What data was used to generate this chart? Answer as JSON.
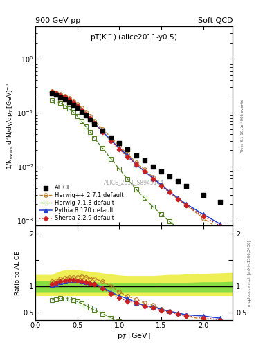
{
  "title_left": "900 GeV pp",
  "title_right": "Soft QCD",
  "plot_label": "pT(K$^-$) (alice2011-y0.5)",
  "watermark": "ALICE_2011_S8945144",
  "right_label_top": "Rivet 3.1.10, ≥ 400k events",
  "right_label_bot": "mcplots.cern.ch [arXiv:1306.3436]",
  "ylabel_main": "1/N$_{event}$ d$^{2}$N/dy/dp$_{T}$ [GeV]$^{-1}$",
  "ylabel_ratio": "Ratio to ALICE",
  "xlabel": "p$_{T}$ [GeV]",
  "alice_pt": [
    0.2,
    0.25,
    0.3,
    0.35,
    0.4,
    0.45,
    0.5,
    0.55,
    0.6,
    0.65,
    0.7,
    0.8,
    0.9,
    1.0,
    1.1,
    1.2,
    1.3,
    1.4,
    1.5,
    1.6,
    1.7,
    1.8,
    2.0,
    2.2
  ],
  "alice_y": [
    0.23,
    0.215,
    0.195,
    0.178,
    0.158,
    0.14,
    0.122,
    0.104,
    0.088,
    0.075,
    0.062,
    0.046,
    0.035,
    0.027,
    0.021,
    0.016,
    0.013,
    0.01,
    0.0082,
    0.0065,
    0.0053,
    0.0044,
    0.003,
    0.0022
  ],
  "mc_pt": [
    0.2,
    0.25,
    0.3,
    0.35,
    0.4,
    0.45,
    0.5,
    0.55,
    0.6,
    0.65,
    0.7,
    0.8,
    0.9,
    1.0,
    1.1,
    1.2,
    1.3,
    1.4,
    1.5,
    1.6,
    1.7,
    1.8,
    2.0,
    2.2
  ],
  "herwig_pp_y": [
    0.25,
    0.238,
    0.222,
    0.205,
    0.185,
    0.164,
    0.143,
    0.123,
    0.103,
    0.086,
    0.071,
    0.05,
    0.035,
    0.024,
    0.017,
    0.012,
    0.0088,
    0.0064,
    0.0046,
    0.0034,
    0.0025,
    0.0019,
    0.0011,
    0.00068
  ],
  "herwig7_y": [
    0.17,
    0.162,
    0.15,
    0.136,
    0.12,
    0.103,
    0.086,
    0.07,
    0.056,
    0.044,
    0.034,
    0.022,
    0.014,
    0.009,
    0.0058,
    0.0038,
    0.0026,
    0.0018,
    0.0013,
    0.00095,
    0.00072,
    0.00056,
    0.00035,
    0.00022
  ],
  "pythia_y": [
    0.235,
    0.224,
    0.21,
    0.194,
    0.175,
    0.155,
    0.134,
    0.114,
    0.095,
    0.079,
    0.065,
    0.045,
    0.031,
    0.022,
    0.016,
    0.011,
    0.0082,
    0.0061,
    0.0046,
    0.0034,
    0.0026,
    0.002,
    0.0013,
    0.00086
  ],
  "sherpa_y": [
    0.24,
    0.228,
    0.212,
    0.196,
    0.176,
    0.156,
    0.135,
    0.114,
    0.095,
    0.079,
    0.064,
    0.044,
    0.03,
    0.021,
    0.015,
    0.011,
    0.008,
    0.0059,
    0.0044,
    0.0033,
    0.0025,
    0.0019,
    0.0012,
    0.00079
  ],
  "alice_color": "#000000",
  "herwig_pp_color": "#b87820",
  "herwig7_color": "#508020",
  "pythia_color": "#2040cc",
  "sherpa_color": "#cc2020",
  "band_pt": [
    0.0,
    0.2,
    0.25,
    0.3,
    0.35,
    0.4,
    0.45,
    0.5,
    0.55,
    0.6,
    0.65,
    0.7,
    0.8,
    0.9,
    1.0,
    1.1,
    1.2,
    1.3,
    1.4,
    1.5,
    1.6,
    1.7,
    1.8,
    2.0,
    2.2,
    2.35
  ],
  "band_yl": [
    0.82,
    0.82,
    0.82,
    0.82,
    0.82,
    0.82,
    0.82,
    0.82,
    0.82,
    0.82,
    0.82,
    0.82,
    0.82,
    0.82,
    0.82,
    0.82,
    0.82,
    0.82,
    0.82,
    0.82,
    0.82,
    0.82,
    0.82,
    0.82,
    0.82,
    0.82
  ],
  "band_yh": [
    1.22,
    1.22,
    1.26,
    1.29,
    1.31,
    1.32,
    1.32,
    1.31,
    1.3,
    1.29,
    1.28,
    1.27,
    1.25,
    1.23,
    1.21,
    1.2,
    1.2,
    1.2,
    1.2,
    1.21,
    1.22,
    1.22,
    1.23,
    1.24,
    1.25,
    1.26
  ],
  "band_gl": [
    0.88,
    0.88,
    0.88,
    0.88,
    0.88,
    0.88,
    0.88,
    0.88,
    0.88,
    0.88,
    0.88,
    0.88,
    0.88,
    0.88,
    0.88,
    0.88,
    0.88,
    0.88,
    0.88,
    0.88,
    0.88,
    0.88,
    0.88,
    0.88,
    0.88,
    0.88
  ],
  "band_gh": [
    1.1,
    1.1,
    1.11,
    1.12,
    1.12,
    1.12,
    1.11,
    1.1,
    1.09,
    1.09,
    1.08,
    1.08,
    1.07,
    1.06,
    1.06,
    1.06,
    1.06,
    1.06,
    1.06,
    1.07,
    1.07,
    1.07,
    1.07,
    1.08,
    1.08,
    1.09
  ],
  "xlim": [
    0.0,
    2.35
  ],
  "ylim_main": [
    0.0008,
    4.0
  ],
  "ylim_ratio": [
    0.35,
    2.15
  ],
  "ratio_yticks": [
    0.5,
    1.0,
    1.5,
    2.0
  ],
  "ratio_yticklabels": [
    "0.5",
    "1",
    "",
    "2"
  ]
}
